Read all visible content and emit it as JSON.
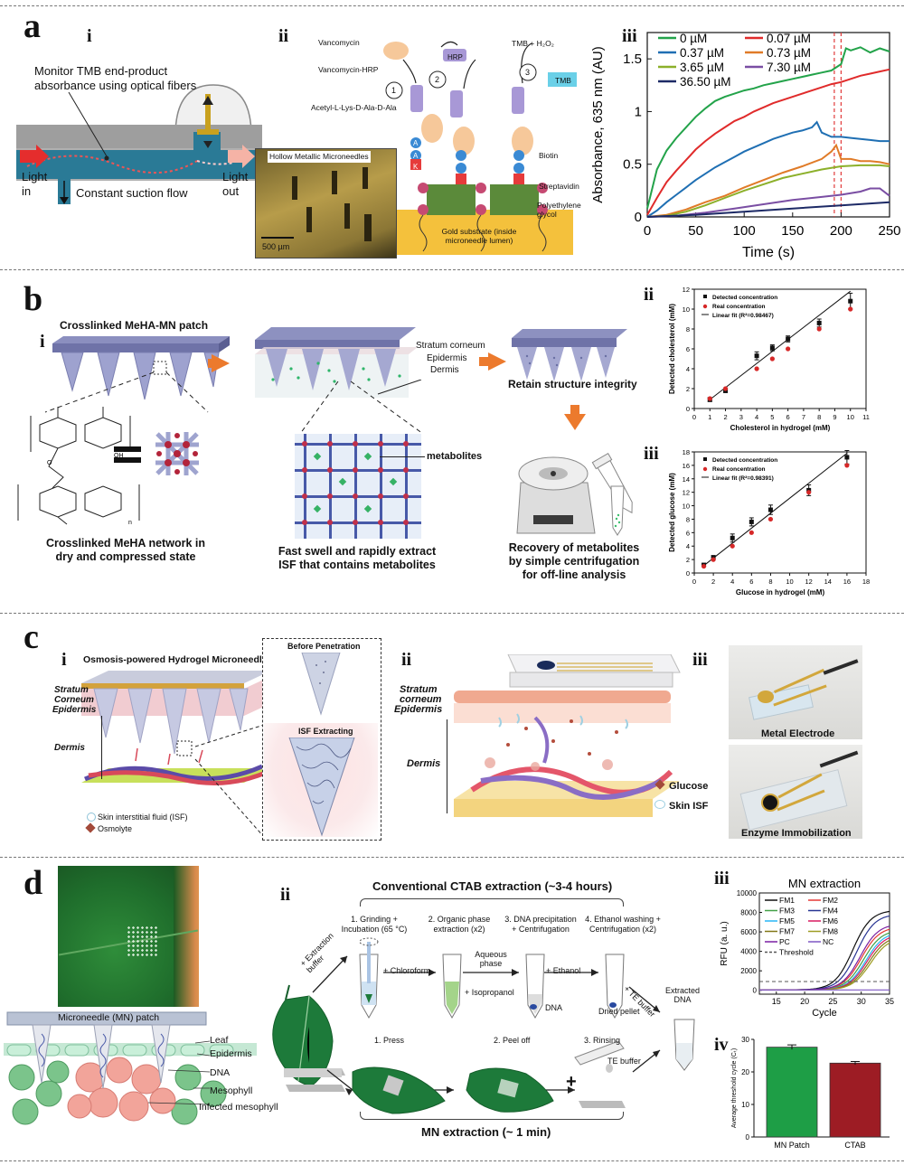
{
  "separators": [
    "top",
    "ab",
    "bc",
    "cd",
    "bottom"
  ],
  "panel_a": {
    "label": "a",
    "sub_i": "i",
    "sub_ii": "ii",
    "sub_iii": "iii",
    "i_monitor": "Monitor TMB end-product absorbance using optical fibers",
    "i_light_in": "Light in",
    "i_light_out": "Light out",
    "i_suction": "Constant suction flow",
    "ii_vancomycin": "Vancomycin",
    "ii_vancomycin_hrp": "Vancomycin-HRP",
    "ii_acetyl": "Acetyl-L-Lys-D-Ala-D-Ala",
    "ii_hrp": "HRP",
    "ii_tmb_h2o2": "TMB + H₂O₂",
    "ii_tmb": "TMB",
    "ii_steps": [
      "1",
      "2",
      "3"
    ],
    "ii_biotin": "Biotin",
    "ii_streptavidin": "Streptavidin",
    "ii_peg": "Polyethylene glycol",
    "ii_gold": "Gold substrate (inside microneedle lumen)",
    "ii_hollow": "Hollow Metallic Microneedles",
    "ii_scale": "500 µm",
    "ii_letters": [
      "A",
      "A",
      "K"
    ]
  },
  "chart_data": [
    {
      "type": "line",
      "id": "a_iii",
      "title": "",
      "xlabel": "Time (s)",
      "ylabel": "Absorbance, 635 nm (AU)",
      "xlim": [
        0,
        250
      ],
      "ylim": [
        0,
        1.75
      ],
      "xticks": [
        0,
        50,
        100,
        150,
        200,
        250
      ],
      "yticks": [
        0,
        0.5,
        1,
        1.5
      ],
      "ytick_labels": [
        "0",
        "0.5",
        "1",
        "1.5"
      ],
      "vlines": [
        193,
        200
      ],
      "vline_color": "#e23b3b",
      "legend": "top-left",
      "series": [
        {
          "name": "0 µM",
          "color": "#23a34a",
          "x": [
            0,
            10,
            20,
            30,
            40,
            50,
            60,
            70,
            80,
            90,
            100,
            110,
            120,
            130,
            140,
            150,
            160,
            170,
            180,
            190,
            200,
            205,
            210,
            220,
            230,
            240,
            250
          ],
          "y": [
            0.08,
            0.45,
            0.63,
            0.75,
            0.85,
            0.95,
            1.03,
            1.1,
            1.14,
            1.17,
            1.2,
            1.22,
            1.25,
            1.27,
            1.29,
            1.31,
            1.33,
            1.35,
            1.37,
            1.39,
            1.45,
            1.6,
            1.58,
            1.61,
            1.56,
            1.6,
            1.57
          ]
        },
        {
          "name": "0.07 µM",
          "color": "#e02b2b",
          "x": [
            0,
            10,
            20,
            30,
            40,
            50,
            60,
            70,
            80,
            90,
            100,
            110,
            120,
            130,
            140,
            150,
            160,
            170,
            180,
            190,
            200,
            210,
            220,
            230,
            240,
            250
          ],
          "y": [
            0.02,
            0.18,
            0.33,
            0.44,
            0.54,
            0.64,
            0.72,
            0.79,
            0.85,
            0.91,
            0.95,
            1.0,
            1.04,
            1.08,
            1.11,
            1.14,
            1.17,
            1.2,
            1.23,
            1.26,
            1.28,
            1.31,
            1.34,
            1.36,
            1.38,
            1.4
          ]
        },
        {
          "name": "0.37 µM",
          "color": "#1f6fb3",
          "x": [
            0,
            10,
            20,
            30,
            40,
            50,
            60,
            70,
            80,
            90,
            100,
            110,
            120,
            130,
            140,
            150,
            160,
            170,
            175,
            180,
            190,
            200,
            210,
            220,
            230,
            240,
            250
          ],
          "y": [
            0,
            0.06,
            0.14,
            0.21,
            0.28,
            0.35,
            0.41,
            0.47,
            0.52,
            0.57,
            0.62,
            0.66,
            0.7,
            0.74,
            0.77,
            0.8,
            0.82,
            0.85,
            0.9,
            0.8,
            0.76,
            0.76,
            0.75,
            0.74,
            0.73,
            0.72,
            0.72
          ]
        },
        {
          "name": "0.73 µM",
          "color": "#e07b28",
          "x": [
            0,
            20,
            40,
            60,
            80,
            100,
            120,
            140,
            160,
            180,
            190,
            195,
            200,
            210,
            220,
            230,
            240,
            250
          ],
          "y": [
            0,
            0.02,
            0.07,
            0.14,
            0.2,
            0.28,
            0.35,
            0.42,
            0.48,
            0.55,
            0.62,
            0.68,
            0.55,
            0.55,
            0.53,
            0.53,
            0.52,
            0.5
          ]
        },
        {
          "name": "3.65 µM",
          "color": "#8cb02a",
          "x": [
            0,
            20,
            40,
            60,
            80,
            100,
            120,
            140,
            160,
            180,
            200,
            220,
            240,
            250
          ],
          "y": [
            0,
            0.01,
            0.05,
            0.11,
            0.18,
            0.25,
            0.31,
            0.37,
            0.41,
            0.45,
            0.48,
            0.49,
            0.49,
            0.48
          ]
        },
        {
          "name": "7.30 µM",
          "color": "#7a4ea3",
          "x": [
            0,
            30,
            60,
            90,
            120,
            150,
            180,
            200,
            220,
            230,
            240,
            250
          ],
          "y": [
            0,
            0.01,
            0.04,
            0.08,
            0.12,
            0.16,
            0.19,
            0.21,
            0.24,
            0.27,
            0.27,
            0.2
          ]
        },
        {
          "name": "36.50 µM",
          "color": "#1d2a66",
          "x": [
            0,
            50,
            100,
            150,
            200,
            250
          ],
          "y": [
            0,
            0.02,
            0.05,
            0.08,
            0.11,
            0.14
          ]
        }
      ]
    },
    {
      "type": "scatter",
      "id": "b_ii",
      "title": "",
      "xlabel": "Cholesterol in hydrogel (mM)",
      "ylabel": "Detected cholesterol (mM)",
      "xlim": [
        0,
        11
      ],
      "ylim": [
        0,
        12
      ],
      "xticks": [
        0,
        1,
        2,
        3,
        4,
        5,
        6,
        7,
        8,
        9,
        10,
        11
      ],
      "yticks": [
        0,
        2,
        4,
        6,
        8,
        10,
        12
      ],
      "legend": "top-left",
      "fit": {
        "name": "Linear fit (R²=0.98467)",
        "x": [
          1,
          10
        ],
        "y": [
          0.9,
          11.8
        ]
      },
      "series": [
        {
          "name": "Detected concentration",
          "color": "#111111",
          "marker": "square",
          "x": [
            1,
            2,
            4,
            5,
            6,
            8,
            10
          ],
          "y": [
            0.9,
            1.8,
            5.3,
            6.1,
            7.0,
            8.6,
            10.8
          ],
          "err": [
            0.2,
            0.2,
            0.4,
            0.3,
            0.3,
            0.4,
            0.8
          ]
        },
        {
          "name": "Real concentration",
          "color": "#d62828",
          "marker": "circle",
          "x": [
            1,
            2,
            4,
            5,
            6,
            8,
            10
          ],
          "y": [
            1,
            2,
            4,
            5,
            6,
            8,
            10
          ]
        }
      ]
    },
    {
      "type": "scatter",
      "id": "b_iii",
      "title": "",
      "xlabel": "Glucose in hydrogel (mM)",
      "ylabel": "Detected glucose (mM)",
      "xlim": [
        0,
        18
      ],
      "ylim": [
        0,
        18
      ],
      "xticks": [
        0,
        2,
        4,
        6,
        8,
        10,
        12,
        14,
        16,
        18
      ],
      "yticks": [
        0,
        2,
        4,
        6,
        8,
        10,
        12,
        14,
        16,
        18
      ],
      "legend": "top-left",
      "fit": {
        "name": "Linear fit (R²=0.98391)",
        "x": [
          1,
          16
        ],
        "y": [
          1.1,
          17.8
        ]
      },
      "series": [
        {
          "name": "Detected concentration",
          "color": "#111111",
          "marker": "square",
          "x": [
            1,
            2,
            4,
            6,
            8,
            12,
            16
          ],
          "y": [
            1.2,
            2.3,
            5.2,
            7.6,
            9.4,
            12.3,
            17.2
          ],
          "err": [
            0.2,
            0.3,
            0.6,
            0.6,
            0.7,
            0.8,
            1.0
          ]
        },
        {
          "name": "Real concentration",
          "color": "#d62828",
          "marker": "circle",
          "x": [
            1,
            2,
            4,
            6,
            8,
            12,
            16
          ],
          "y": [
            1,
            2,
            4,
            6,
            8,
            12,
            16
          ]
        }
      ]
    },
    {
      "type": "line",
      "id": "d_iii",
      "title": "MN extraction",
      "xlabel": "Cycle",
      "ylabel": "RFU (a. u.)",
      "xlim": [
        12,
        35
      ],
      "ylim": [
        -400,
        10000
      ],
      "xticks": [
        15,
        20,
        25,
        30,
        35
      ],
      "yticks": [
        0,
        2000,
        4000,
        6000,
        8000,
        10000
      ],
      "threshold": 900,
      "legend": "top-left",
      "series": [
        {
          "name": "FM1",
          "color": "#111111",
          "ct": 24.5,
          "plateau": 8200
        },
        {
          "name": "FM2",
          "color": "#e53935",
          "ct": 26.0,
          "plateau": 6500
        },
        {
          "name": "FM3",
          "color": "#43a047",
          "ct": 26.4,
          "plateau": 6200
        },
        {
          "name": "FM4",
          "color": "#283593",
          "ct": 25.2,
          "plateau": 7800
        },
        {
          "name": "FM5",
          "color": "#29b6f6",
          "ct": 26.8,
          "plateau": 6000
        },
        {
          "name": "FM6",
          "color": "#d81b60",
          "ct": 27.0,
          "plateau": 5800
        },
        {
          "name": "FM7",
          "color": "#827717",
          "ct": 27.3,
          "plateau": 5600
        },
        {
          "name": "FM8",
          "color": "#9e9d24",
          "ct": 27.6,
          "plateau": 5400
        },
        {
          "name": "PC",
          "color": "#7b1fa2",
          "ct": 25.8,
          "plateau": 6800
        },
        {
          "name": "NC",
          "color": "#7e57c2",
          "ct": null,
          "plateau": 0
        },
        {
          "name": "Threshold",
          "color": "#555555",
          "dashed": true
        }
      ]
    },
    {
      "type": "bar",
      "id": "d_iv",
      "title": "",
      "xlabel": "",
      "ylabel": "Average threshold cycle (Cₜ)",
      "categories": [
        "MN Patch",
        "CTAB"
      ],
      "values": [
        27.6,
        22.7
      ],
      "errors": [
        0.7,
        0.5
      ],
      "colors": [
        "#1e9e46",
        "#9d1c24"
      ],
      "ylim": [
        0,
        30
      ],
      "yticks": [
        0,
        10,
        20,
        30
      ]
    }
  ],
  "panel_b": {
    "label": "b",
    "sub_i": "i",
    "sub_ii": "ii",
    "sub_iii": "iii",
    "patch_title": "Crosslinked MeHA-MN patch",
    "layers": [
      "Stratum corneum",
      "Epidermis",
      "Dermis"
    ],
    "retain": "Retain structure integrity",
    "metabolites": "metabolites",
    "network_caption": "Crosslinked MeHA network in dry and compressed state",
    "swell_caption": "Fast swell and rapidly extract ISF that contains metabolites",
    "recovery_caption": "Recovery of metabolites by simple centrifugation for off-line analysis"
  },
  "panel_c": {
    "label": "c",
    "sub_i": "i",
    "sub_ii": "ii",
    "sub_iii": "iii",
    "osmosis_title": "Osmosis-powered Hydrogel Microneedles",
    "stratum": "Stratum Corneum",
    "epidermis": "Epidermis",
    "dermis": "Dermis",
    "before": "Before Penetration",
    "isf_extracting": "ISF Extracting",
    "legend_isf": "Skin interstitial fluid (ISF)",
    "legend_osmolyte": "Osmolyte",
    "ii_stratum": "Stratum corneum",
    "ii_epidermis": "Epidermis",
    "ii_dermis": "Dermis",
    "ii_glucose": "Glucose",
    "ii_skin_isf": "Skin ISF",
    "iii_metal": "Metal Electrode",
    "iii_enzyme": "Enzyme Immobilization"
  },
  "panel_d": {
    "label": "d",
    "sub_i": "i",
    "sub_ii": "ii",
    "sub_iii": "iii",
    "sub_iv": "iv",
    "mn_patch": "Microneedle (MN) patch",
    "leaf": "Leaf",
    "epidermis": "Epidermis",
    "dna": "DNA",
    "mesophyll": "Mesophyll",
    "infected": "Infected mesophyll",
    "ctab_title": "Conventional CTAB extraction (~3-4 hours)",
    "steps": [
      "1. Grinding + Incubation (65 °C)",
      "2. Organic phase extraction (x2)",
      "3. DNA precipitation + Centrifugation",
      "4. Ethanol washing + Centrifugation (x2)"
    ],
    "extraction_buffer": "+ Extraction buffer",
    "chloroform": "+ Chloroform",
    "aqueous": "Aqueous phase",
    "isopropanol": "+ Isopropanol",
    "ethanol": "+ Ethanol",
    "dna_label": "DNA",
    "dried_pellet": "Dried pellet",
    "te_buffer_arrow": "+ TE buffer",
    "extracted_dna": "Extracted DNA",
    "press": "1. Press",
    "peel": "2. Peel off",
    "rinse": "3. Rinsing",
    "te_buffer": "TE buffer",
    "mn_extraction": "MN extraction (~ 1 min)",
    "plus": "+"
  }
}
